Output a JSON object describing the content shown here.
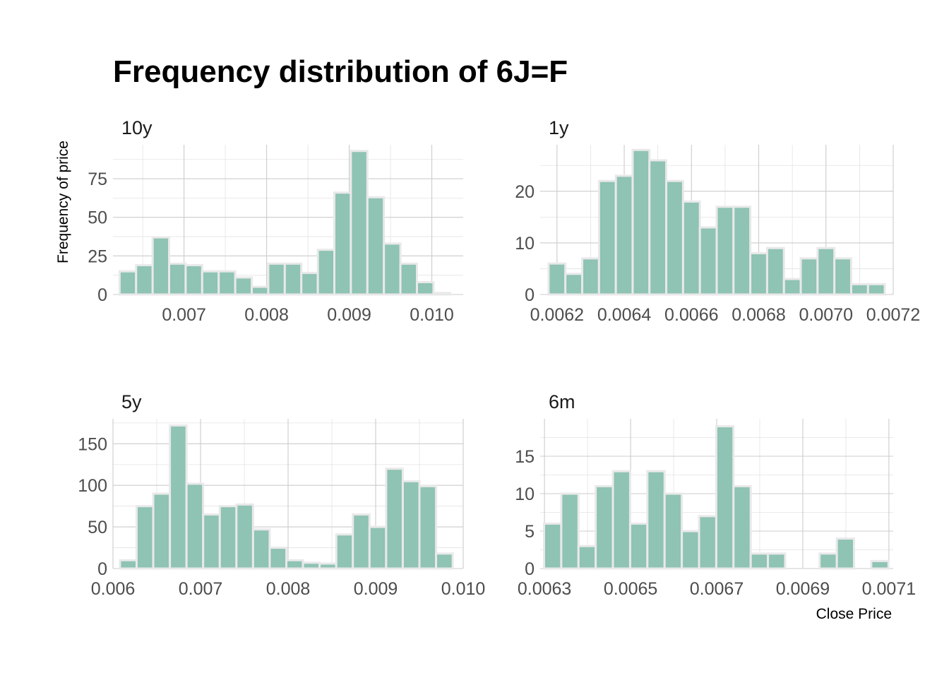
{
  "colors": {
    "bar_fill": "#8fc3b4",
    "bar_stroke": "#e9e9e9",
    "grid": "#cccccc"
  },
  "chart_data": {
    "type": "bar",
    "title": "Frequency distribution of 6J=F",
    "xlabel": "Close Price",
    "ylabel": "Frequency of price",
    "grid": true,
    "legend": "none",
    "panels": [
      {
        "label": "10y",
        "xlim": [
          0.00614,
          0.01038
        ],
        "ylim": [
          0,
          97
        ],
        "xticks": [
          0.007,
          0.008,
          0.009,
          0.01
        ],
        "xtick_labels": [
          "0.007",
          "0.008",
          "0.009",
          "0.010"
        ],
        "yticks": [
          0,
          25,
          50,
          75
        ],
        "ytick_labels": [
          "0",
          "25",
          "50",
          "75"
        ],
        "bin_start": 0.00622,
        "bin_width": 0.0002,
        "values": [
          15,
          19,
          37,
          20,
          19,
          15,
          15,
          11,
          5,
          20,
          20,
          14,
          29,
          66,
          93,
          63,
          33,
          20,
          8,
          1
        ]
      },
      {
        "label": "1y",
        "xlim": [
          0.00615,
          0.0072
        ],
        "ylim": [
          0,
          29
        ],
        "xticks": [
          0.0062,
          0.0064,
          0.0066,
          0.0068,
          0.007,
          0.0072
        ],
        "xtick_labels": [
          "0.0062",
          "0.0064",
          "0.0066",
          "0.0068",
          "0.0070",
          "0.0072"
        ],
        "yticks": [
          0,
          10,
          20
        ],
        "ytick_labels": [
          "0",
          "10",
          "20"
        ],
        "bin_start": 0.006175,
        "bin_width": 5e-05,
        "values": [
          6,
          4,
          7,
          22,
          23,
          28,
          26,
          22,
          18,
          13,
          17,
          17,
          8,
          9,
          3,
          7,
          9,
          7,
          2,
          2
        ]
      },
      {
        "label": "5y",
        "xlim": [
          0.006,
          0.01
        ],
        "ylim": [
          0,
          180
        ],
        "xticks": [
          0.006,
          0.007,
          0.008,
          0.009,
          0.01
        ],
        "xtick_labels": [
          "0.006",
          "0.007",
          "0.008",
          "0.009",
          "0.010"
        ],
        "yticks": [
          0,
          50,
          100,
          150
        ],
        "ytick_labels": [
          "0",
          "50",
          "100",
          "150"
        ],
        "bin_start": 0.00608,
        "bin_width": 0.00019,
        "values": [
          10,
          75,
          90,
          172,
          102,
          65,
          75,
          77,
          47,
          25,
          10,
          7,
          6,
          41,
          65,
          50,
          120,
          105,
          99,
          18
        ]
      },
      {
        "label": "6m",
        "xlim": [
          0.00629,
          0.00711
        ],
        "ylim": [
          0,
          20
        ],
        "xticks": [
          0.0063,
          0.0065,
          0.0067,
          0.0069,
          0.0071
        ],
        "xtick_labels": [
          "0.0063",
          "0.0065",
          "0.0067",
          "0.0069",
          "0.0071"
        ],
        "yticks": [
          0,
          5,
          10,
          15
        ],
        "ytick_labels": [
          "0",
          "5",
          "10",
          "15"
        ],
        "bin_start": 0.006299,
        "bin_width": 4e-05,
        "values": [
          6,
          10,
          3,
          11,
          13,
          6,
          13,
          10,
          5,
          7,
          19,
          11,
          2,
          2,
          0,
          0,
          2,
          4,
          0,
          1
        ]
      }
    ]
  }
}
